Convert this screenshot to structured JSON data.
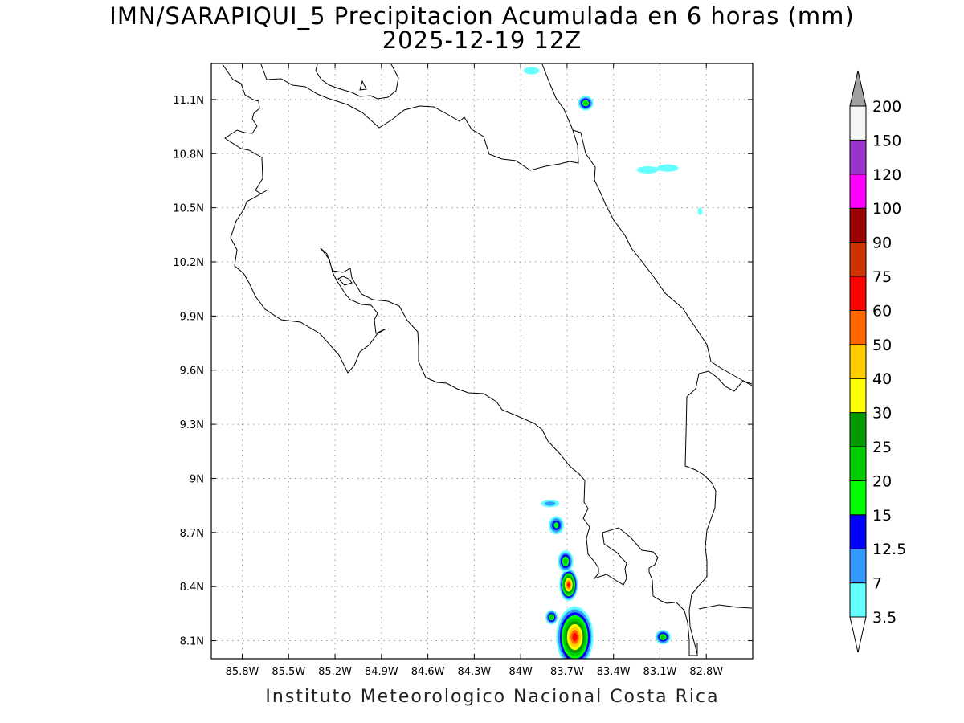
{
  "title": {
    "line1": "IMN/SARAPIQUI_5 Precipitacion Acumulada en 6 horas (mm)",
    "line2": "2025-12-19 12Z"
  },
  "credit": "Instituto Meteorologico Nacional Costa Rica",
  "map": {
    "lon_range": [
      -86.0,
      -82.5
    ],
    "lat_range": [
      8.0,
      11.3
    ],
    "lon_ticks": [
      {
        "value": -85.8,
        "label": "85.8W"
      },
      {
        "value": -85.5,
        "label": "85.5W"
      },
      {
        "value": -85.2,
        "label": "85.2W"
      },
      {
        "value": -84.9,
        "label": "84.9W"
      },
      {
        "value": -84.6,
        "label": "84.6W"
      },
      {
        "value": -84.3,
        "label": "84.3W"
      },
      {
        "value": -84.0,
        "label": "84W"
      },
      {
        "value": -83.7,
        "label": "83.7W"
      },
      {
        "value": -83.4,
        "label": "83.4W"
      },
      {
        "value": -83.1,
        "label": "83.1W"
      },
      {
        "value": -82.8,
        "label": "82.8W"
      }
    ],
    "lat_ticks": [
      {
        "value": 8.1,
        "label": "8.1N"
      },
      {
        "value": 8.4,
        "label": "8.4N"
      },
      {
        "value": 8.7,
        "label": "8.7N"
      },
      {
        "value": 9.0,
        "label": "9N"
      },
      {
        "value": 9.3,
        "label": "9.3N"
      },
      {
        "value": 9.6,
        "label": "9.6N"
      },
      {
        "value": 9.9,
        "label": "9.9N"
      },
      {
        "value": 10.2,
        "label": "10.2N"
      },
      {
        "value": 10.5,
        "label": "10.5N"
      },
      {
        "value": 10.8,
        "label": "10.8N"
      },
      {
        "value": 11.1,
        "label": "11.1N"
      }
    ],
    "grid": true
  },
  "legend": {
    "orientation": "vertical",
    "placement": "right",
    "top_arrow_color": "#a0a0a0",
    "bottom_arrow_color": "#ffffff",
    "bins": [
      {
        "label": "3.5",
        "color": "#66ffff"
      },
      {
        "label": "7",
        "color": "#3399ff"
      },
      {
        "label": "12.5",
        "color": "#0000ff"
      },
      {
        "label": "15",
        "color": "#00ff00"
      },
      {
        "label": "20",
        "color": "#00cc00"
      },
      {
        "label": "25",
        "color": "#009900"
      },
      {
        "label": "30",
        "color": "#ffff00"
      },
      {
        "label": "40",
        "color": "#ffcc00"
      },
      {
        "label": "50",
        "color": "#ff6600"
      },
      {
        "label": "60",
        "color": "#ff0000"
      },
      {
        "label": "75",
        "color": "#cc3300"
      },
      {
        "label": "90",
        "color": "#990000"
      },
      {
        "label": "100",
        "color": "#ff00ff"
      },
      {
        "label": "120",
        "color": "#9933cc"
      },
      {
        "label": "150",
        "color": "#f5f5f5"
      },
      {
        "label": "200",
        "color": null
      }
    ]
  },
  "precip_cells": [
    {
      "lon": -83.65,
      "lat": 8.12,
      "rx": 0.12,
      "ry": 0.17,
      "level": "60"
    },
    {
      "lon": -83.69,
      "lat": 8.41,
      "rx": 0.06,
      "ry": 0.09,
      "level": "60"
    },
    {
      "lon": -83.71,
      "lat": 8.54,
      "rx": 0.05,
      "ry": 0.06,
      "level": "20"
    },
    {
      "lon": -83.77,
      "lat": 8.74,
      "rx": 0.05,
      "ry": 0.05,
      "level": "15"
    },
    {
      "lon": -83.8,
      "lat": 8.23,
      "rx": 0.04,
      "ry": 0.04,
      "level": "20"
    },
    {
      "lon": -83.58,
      "lat": 11.08,
      "rx": 0.05,
      "ry": 0.04,
      "level": "20"
    },
    {
      "lon": -83.08,
      "lat": 8.12,
      "rx": 0.05,
      "ry": 0.04,
      "level": "20"
    },
    {
      "lon": -83.81,
      "lat": 8.86,
      "rx": 0.06,
      "ry": 0.02,
      "level": "7"
    },
    {
      "lon": -83.93,
      "lat": 11.26,
      "rx": 0.05,
      "ry": 0.02,
      "level": "3.5"
    },
    {
      "lon": -83.18,
      "lat": 10.71,
      "rx": 0.07,
      "ry": 0.02,
      "level": "3.5"
    },
    {
      "lon": -83.05,
      "lat": 10.72,
      "rx": 0.07,
      "ry": 0.02,
      "level": "3.5"
    },
    {
      "lon": -82.84,
      "lat": 10.48,
      "rx": 0.015,
      "ry": 0.02,
      "level": "3.5"
    }
  ]
}
